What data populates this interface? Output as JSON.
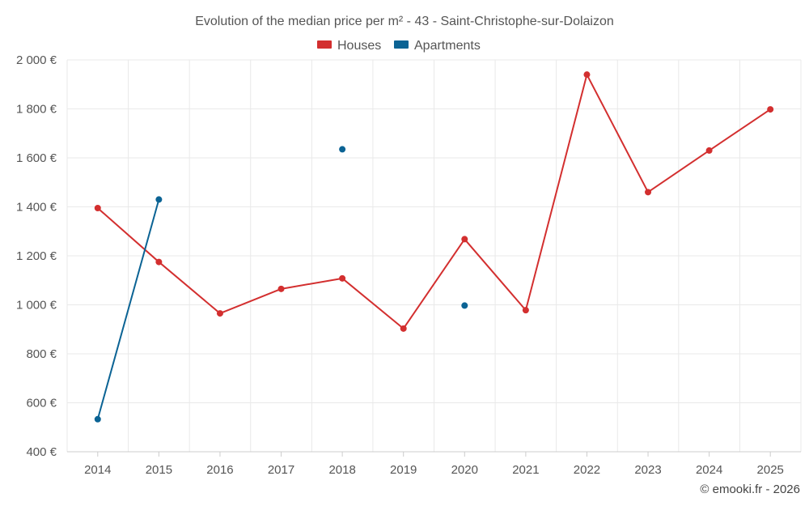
{
  "chart_data": {
    "type": "line",
    "title": "Evolution of the median price per m² - 43 - Saint-Christophe-sur-Dolaizon",
    "categories": [
      "2014",
      "2015",
      "2016",
      "2017",
      "2018",
      "2019",
      "2020",
      "2021",
      "2022",
      "2023",
      "2024",
      "2025"
    ],
    "ylim": [
      400,
      2000
    ],
    "yticks": [
      400,
      600,
      800,
      1000,
      1200,
      1400,
      1600,
      1800,
      2000
    ],
    "ytick_labels": [
      "400 €",
      "600 €",
      "800 €",
      "1 000 €",
      "1 200 €",
      "1 400 €",
      "1 600 €",
      "1 800 €",
      "2 000 €"
    ],
    "grid": true,
    "legend_position": "top-center",
    "series": [
      {
        "name": "Houses",
        "color": "#d32f2f",
        "values": [
          1395,
          1175,
          965,
          1065,
          1108,
          903,
          1268,
          978,
          1940,
          1460,
          1630,
          1798
        ]
      },
      {
        "name": "Apartments",
        "color": "#0b6394",
        "values": [
          533,
          1430,
          null,
          null,
          1635,
          null,
          997,
          null,
          null,
          null,
          null,
          null
        ]
      }
    ]
  },
  "credit": "© emooki.fr - 2026"
}
